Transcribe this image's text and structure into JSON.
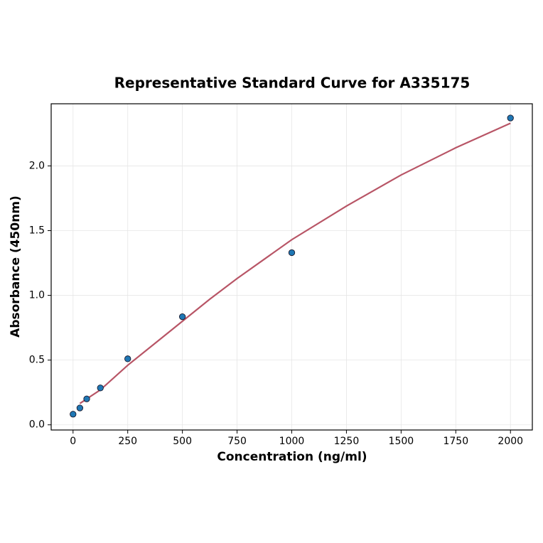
{
  "chart_data": {
    "type": "scatter",
    "title": "Representative Standard Curve for A335175",
    "x_label": "Concentration (ng/ml)",
    "y_label": "Absorbance (450nm)",
    "xlim": [
      -100,
      2100
    ],
    "ylim": [
      -0.04,
      2.48
    ],
    "xticks": [
      0,
      250,
      500,
      750,
      1000,
      1250,
      1500,
      1750,
      2000
    ],
    "yticks": [
      {
        "value": 0,
        "label": "0.0"
      },
      0.5,
      {
        "value": 1,
        "label": "1.0"
      },
      1.5,
      {
        "value": 2,
        "label": "2.0"
      }
    ],
    "grid": true,
    "series": [
      {
        "style": "markers",
        "color": "#1f77b4",
        "x": [
          0,
          31.25,
          62.5,
          125,
          250,
          500,
          1000,
          2000
        ],
        "values": [
          0.082,
          0.13,
          0.2,
          0.285,
          0.51,
          0.835,
          1.33,
          2.37
        ]
      },
      {
        "style": "line",
        "color": "#b85566",
        "x": [
          31.25,
          62.5,
          125,
          250,
          375,
          500,
          625,
          750,
          875,
          1000,
          1250,
          1500,
          1750,
          2000
        ],
        "values": [
          0.165,
          0.2,
          0.27,
          0.46,
          0.63,
          0.8,
          0.97,
          1.13,
          1.28,
          1.43,
          1.69,
          1.93,
          2.14,
          2.33
        ]
      }
    ]
  }
}
